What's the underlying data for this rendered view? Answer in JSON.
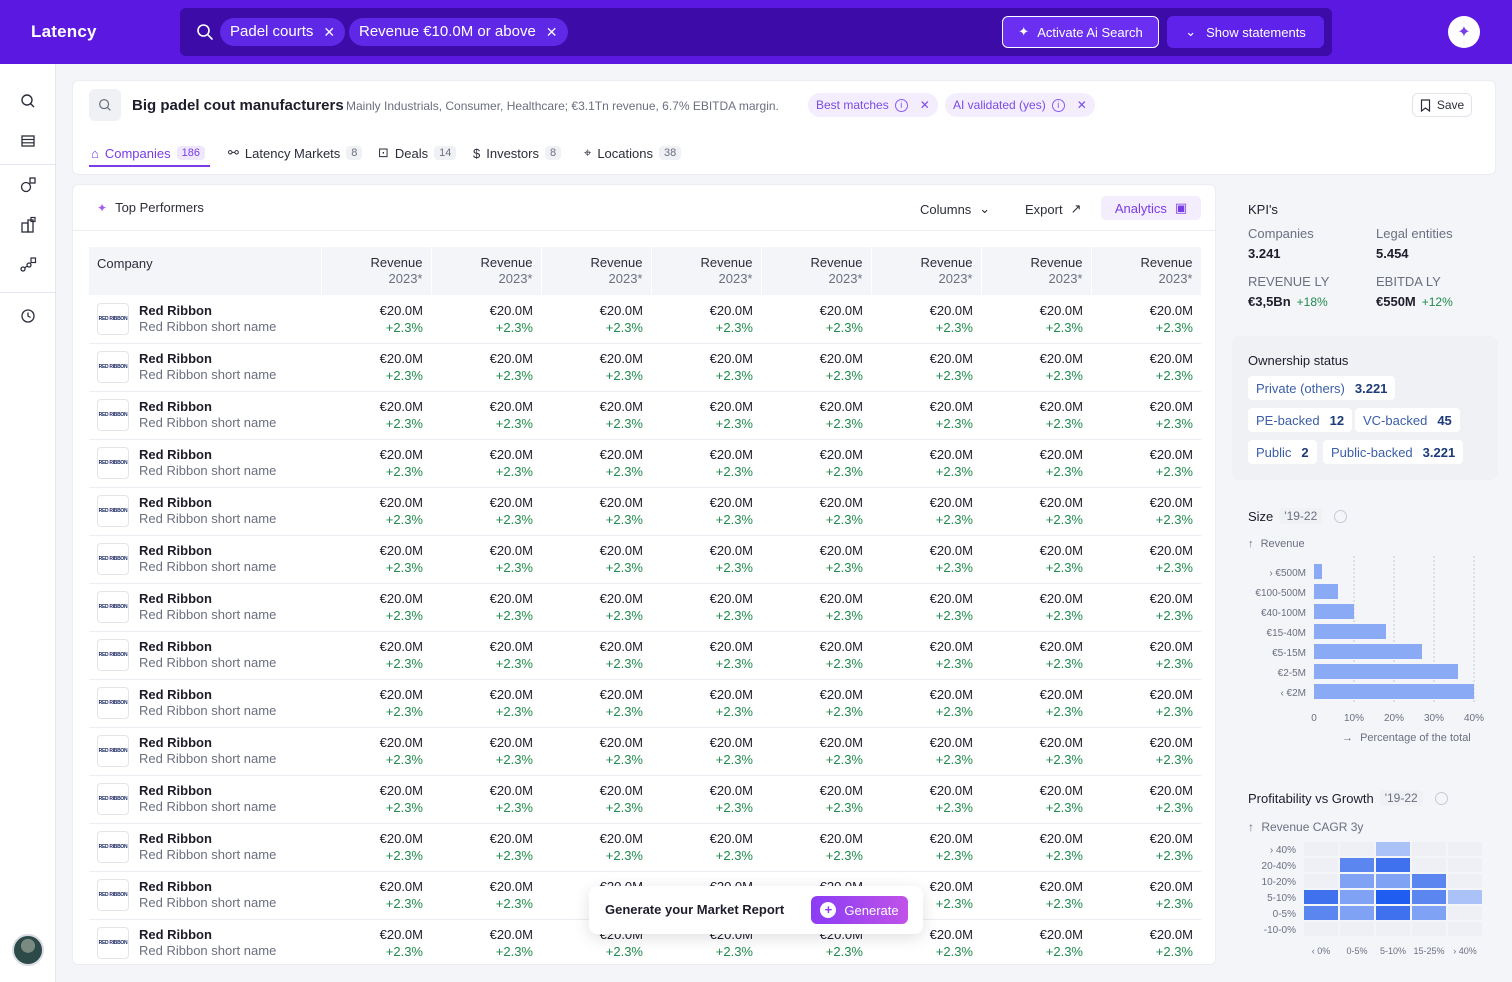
{
  "app": {
    "name": "Latency"
  },
  "search": {
    "chips": [
      "Padel courts",
      "Revenue €10.0M or above"
    ],
    "ai_button": "Activate Ai Search",
    "statements_button": "Show statements"
  },
  "header": {
    "title": "Big padel cout manufacturers",
    "description": "Mainly Industrials, Consumer, Healthcare; €3.1Tn revenue, 6.7% EBITDA margin.",
    "pills": [
      "Best matches",
      "AI validated (yes)"
    ],
    "save_label": "Save",
    "tabs": [
      {
        "label": "Companies",
        "count": "186"
      },
      {
        "label": "Latency Markets",
        "count": "8"
      },
      {
        "label": "Deals",
        "count": "14"
      },
      {
        "label": "Investors",
        "count": "8"
      },
      {
        "label": "Locations",
        "count": "38"
      }
    ]
  },
  "table": {
    "top_performers": "Top Performers",
    "columns_label": "Columns",
    "export_label": "Export",
    "analytics_label": "Analytics",
    "company_header": "Company",
    "revenue_header": [
      "Revenue",
      "2023*"
    ],
    "revenue_columns": 8,
    "rows": [
      {
        "name": "Red Ribbon",
        "short": "Red Ribbon short name",
        "logo": "RED RIBBON",
        "value": "€20.0M",
        "growth": "+2.3%"
      },
      {
        "name": "Red Ribbon",
        "short": "Red Ribbon short name",
        "logo": "RED RIBBON",
        "value": "€20.0M",
        "growth": "+2.3%"
      },
      {
        "name": "Red Ribbon",
        "short": "Red Ribbon short name",
        "logo": "RED RIBBON",
        "value": "€20.0M",
        "growth": "+2.3%"
      },
      {
        "name": "Red Ribbon",
        "short": "Red Ribbon short name",
        "logo": "RED RIBBON",
        "value": "€20.0M",
        "growth": "+2.3%"
      },
      {
        "name": "Red Ribbon",
        "short": "Red Ribbon short name",
        "logo": "RED RIBBON",
        "value": "€20.0M",
        "growth": "+2.3%"
      },
      {
        "name": "Red Ribbon",
        "short": "Red Ribbon short name",
        "logo": "RED RIBBON",
        "value": "€20.0M",
        "growth": "+2.3%"
      },
      {
        "name": "Red Ribbon",
        "short": "Red Ribbon short name",
        "logo": "RED RIBBON",
        "value": "€20.0M",
        "growth": "+2.3%"
      },
      {
        "name": "Red Ribbon",
        "short": "Red Ribbon short name",
        "logo": "RED RIBBON",
        "value": "€20.0M",
        "growth": "+2.3%"
      },
      {
        "name": "Red Ribbon",
        "short": "Red Ribbon short name",
        "logo": "RED RIBBON",
        "value": "€20.0M",
        "growth": "+2.3%"
      },
      {
        "name": "Red Ribbon",
        "short": "Red Ribbon short name",
        "logo": "RED RIBBON",
        "value": "€20.0M",
        "growth": "+2.3%"
      },
      {
        "name": "Red Ribbon",
        "short": "Red Ribbon short name",
        "logo": "RED RIBBON",
        "value": "€20.0M",
        "growth": "+2.3%"
      },
      {
        "name": "Red Ribbon",
        "short": "Red Ribbon short name",
        "logo": "RED RIBBON",
        "value": "€20.0M",
        "growth": "+2.3%"
      },
      {
        "name": "Red Ribbon",
        "short": "Red Ribbon short name",
        "logo": "RED RIBBON",
        "value": "€20.0M",
        "growth": "+2.3%"
      },
      {
        "name": "Red Ribbon",
        "short": "Red Ribbon short name",
        "logo": "RED RIBBON",
        "value": "€20.0M",
        "growth": "+2.3%"
      }
    ]
  },
  "generate": {
    "text": "Generate your Market Report",
    "button": "Generate"
  },
  "kpis": {
    "title": "KPI's",
    "companies_label": "Companies",
    "companies_value": "3.241",
    "entities_label": "Legal entities",
    "entities_value": "5.454",
    "revenue_label": "REVENUE LY",
    "revenue_value": "€3,5Bn",
    "revenue_growth": "+18%",
    "ebitda_label": "EBITDA LY",
    "ebitda_value": "€550M",
    "ebitda_growth": "+12%"
  },
  "ownership": {
    "title": "Ownership status",
    "tags": [
      {
        "label": "Private (others)",
        "value": "3.221"
      },
      {
        "label": "PE-backed",
        "value": "12"
      },
      {
        "label": "VC-backed",
        "value": "45"
      },
      {
        "label": "Public",
        "value": "2"
      },
      {
        "label": "Public-backed",
        "value": "3.221"
      }
    ]
  },
  "size_chart": {
    "title": "Size",
    "period": "'19-22",
    "y_axis_label": "Revenue",
    "x_axis_label": "Percentage of the total"
  },
  "heatmap_chart": {
    "title": "Profitability vs Growth",
    "period": "'19-22",
    "y_axis_label": "Revenue CAGR 3y"
  },
  "chart_data": [
    {
      "type": "bar",
      "orientation": "horizontal",
      "categories": [
        "› €500M",
        "€100-500M",
        "€40-100M",
        "€15-40M",
        "€5-15M",
        "€2-5M",
        "‹ €2M"
      ],
      "values": [
        2,
        6,
        10,
        18,
        27,
        36,
        40
      ],
      "xticks": [
        "0",
        "10%",
        "20%",
        "30%",
        "40%"
      ],
      "xlim": [
        0,
        40
      ],
      "colors": {
        "bar": "#8aaaf5",
        "grid": "#c9cbd4"
      }
    },
    {
      "type": "heatmap",
      "y_categories": [
        "› 40%",
        "20-40%",
        "10-20%",
        "5-10%",
        "0-5%",
        "-10-0%"
      ],
      "x_categories": [
        "‹ 0%",
        "0-5%",
        "5-10%",
        "15-25%",
        "› 40%"
      ],
      "levels": [
        [
          0,
          0,
          1,
          0,
          0
        ],
        [
          0,
          3,
          4,
          0,
          0
        ],
        [
          0,
          2,
          2,
          3,
          0
        ],
        [
          4,
          2,
          5,
          3,
          1
        ],
        [
          3,
          2,
          4,
          2,
          0
        ],
        [
          0,
          0,
          0,
          0,
          0
        ]
      ],
      "palette": [
        "#eef0f5",
        "#aac2f8",
        "#7fa2f4",
        "#5b86f0",
        "#3f70ee",
        "#1f5cf0"
      ]
    }
  ]
}
